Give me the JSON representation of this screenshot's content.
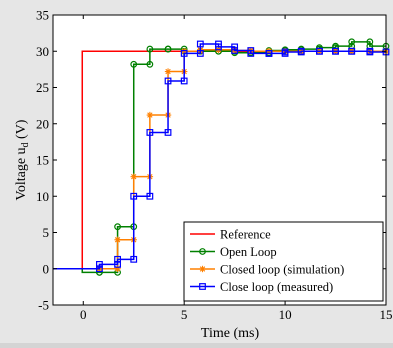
{
  "chart_data": {
    "type": "line",
    "xlabel": "Time (ms)",
    "ylabel": "Voltage u",
    "ylabel_subscript": "d",
    "ylabel_unit": " (V)",
    "xlim": [
      -1.5,
      15
    ],
    "ylim": [
      -5,
      35
    ],
    "xticks": [
      0,
      5,
      10,
      15
    ],
    "yticks": [
      -5,
      0,
      5,
      10,
      15,
      20,
      25,
      30,
      35
    ],
    "grid": false,
    "legend_position": "bottom-right",
    "series": [
      {
        "name": "Reference",
        "color": "#ff0000",
        "marker": "none",
        "points": [
          [
            -1.5,
            0
          ],
          [
            -0.05,
            0
          ],
          [
            -0.05,
            30
          ],
          [
            15,
            30
          ]
        ]
      },
      {
        "name": "Open Loop",
        "color": "#008000",
        "marker": "circle",
        "points": [
          [
            -1.5,
            0
          ],
          [
            -0.05,
            0
          ],
          [
            -0.05,
            -0.5
          ],
          [
            0.8,
            -0.5
          ],
          [
            0.8,
            -0.5
          ],
          [
            1.7,
            -0.5
          ],
          [
            1.7,
            5.8
          ],
          [
            2.5,
            5.8
          ],
          [
            2.5,
            28.2
          ],
          [
            3.3,
            28.2
          ],
          [
            3.3,
            30.3
          ],
          [
            4.2,
            30.3
          ],
          [
            4.2,
            30.3
          ],
          [
            5.0,
            30.3
          ],
          [
            5.0,
            30.0
          ],
          [
            5.8,
            30.0
          ],
          [
            5.8,
            30.0
          ],
          [
            6.7,
            30.0
          ],
          [
            6.7,
            30.0
          ],
          [
            7.5,
            30.0
          ],
          [
            7.5,
            29.8
          ],
          [
            8.3,
            29.8
          ],
          [
            8.3,
            29.8
          ],
          [
            9.2,
            29.8
          ],
          [
            9.2,
            30.1
          ],
          [
            10.0,
            30.1
          ],
          [
            10.0,
            30.2
          ],
          [
            10.8,
            30.2
          ],
          [
            10.8,
            30.3
          ],
          [
            11.7,
            30.3
          ],
          [
            11.7,
            30.5
          ],
          [
            12.5,
            30.5
          ],
          [
            12.5,
            30.7
          ],
          [
            13.3,
            30.7
          ],
          [
            13.3,
            31.3
          ],
          [
            14.2,
            31.3
          ],
          [
            14.2,
            30.7
          ],
          [
            15.0,
            30.7
          ]
        ]
      },
      {
        "name": "Closed loop (simulation)",
        "color": "#ff8000",
        "marker": "star",
        "points": [
          [
            -1.5,
            0
          ],
          [
            -0.05,
            0
          ],
          [
            -0.05,
            0
          ],
          [
            0.8,
            0
          ],
          [
            0.8,
            0
          ],
          [
            1.7,
            0
          ],
          [
            1.7,
            4.0
          ],
          [
            2.5,
            4.0
          ],
          [
            2.5,
            12.7
          ],
          [
            3.3,
            12.7
          ],
          [
            3.3,
            21.2
          ],
          [
            4.2,
            21.2
          ],
          [
            4.2,
            27.2
          ],
          [
            5.0,
            27.2
          ],
          [
            5.0,
            30.0
          ],
          [
            5.8,
            30.0
          ],
          [
            5.8,
            30.2
          ],
          [
            6.7,
            30.2
          ],
          [
            6.7,
            30.2
          ],
          [
            7.5,
            30.2
          ],
          [
            7.5,
            30.1
          ],
          [
            8.3,
            30.1
          ],
          [
            8.3,
            30.0
          ],
          [
            9.2,
            30.0
          ],
          [
            9.2,
            30.0
          ],
          [
            10.0,
            30.0
          ],
          [
            10.0,
            30.0
          ],
          [
            10.8,
            30.0
          ],
          [
            10.8,
            30.0
          ],
          [
            11.7,
            30.0
          ],
          [
            11.7,
            30.0
          ],
          [
            12.5,
            30.0
          ],
          [
            12.5,
            30.0
          ],
          [
            13.3,
            30.0
          ],
          [
            13.3,
            30.0
          ],
          [
            14.2,
            30.0
          ],
          [
            14.2,
            30.0
          ],
          [
            15.0,
            30.0
          ]
        ]
      },
      {
        "name": "Close loop (measured)",
        "color": "#0000ff",
        "marker": "square",
        "points": [
          [
            -1.5,
            0
          ],
          [
            -0.05,
            0
          ],
          [
            -0.05,
            0
          ],
          [
            0.8,
            0
          ],
          [
            0.8,
            0.6
          ],
          [
            1.7,
            0.6
          ],
          [
            1.7,
            1.3
          ],
          [
            2.5,
            1.3
          ],
          [
            2.5,
            10.0
          ],
          [
            3.3,
            10.0
          ],
          [
            3.3,
            18.8
          ],
          [
            4.2,
            18.8
          ],
          [
            4.2,
            25.9
          ],
          [
            5.0,
            25.9
          ],
          [
            5.0,
            29.7
          ],
          [
            5.8,
            29.7
          ],
          [
            5.8,
            31.0
          ],
          [
            6.7,
            31.0
          ],
          [
            6.7,
            30.6
          ],
          [
            7.5,
            30.6
          ],
          [
            7.5,
            30.1
          ],
          [
            8.3,
            30.1
          ],
          [
            8.3,
            29.7
          ],
          [
            9.2,
            29.7
          ],
          [
            9.2,
            29.7
          ],
          [
            10.0,
            29.7
          ],
          [
            10.0,
            29.9
          ],
          [
            10.8,
            29.9
          ],
          [
            10.8,
            30.0
          ],
          [
            11.7,
            30.0
          ],
          [
            11.7,
            30.0
          ],
          [
            12.5,
            30.0
          ],
          [
            12.5,
            30.0
          ],
          [
            13.3,
            30.0
          ],
          [
            13.3,
            30.0
          ],
          [
            14.2,
            30.0
          ],
          [
            14.2,
            29.9
          ],
          [
            15.0,
            29.9
          ]
        ]
      }
    ]
  }
}
